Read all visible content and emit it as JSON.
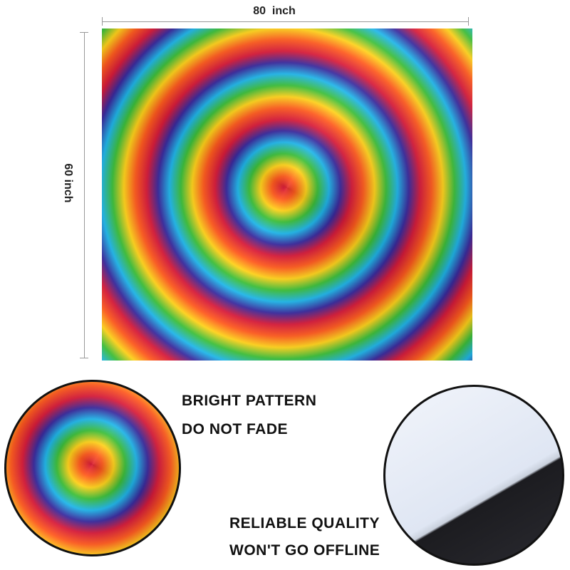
{
  "dimensions": {
    "width": "80  inch",
    "height": "60 inch"
  },
  "features": [
    {
      "lines": [
        "BRIGHT PATTERN",
        "DO NOT FADE"
      ]
    },
    {
      "lines": [
        "RELIABLE QUALITY",
        "WON'T GO OFFLINE"
      ]
    }
  ]
}
